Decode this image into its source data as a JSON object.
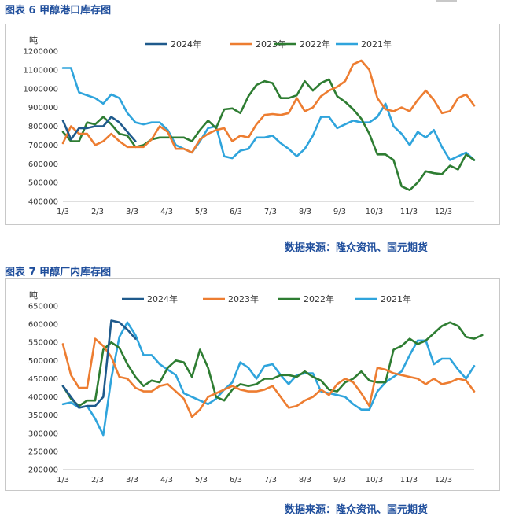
{
  "figures": [
    {
      "title": "图表 6 甲醇港口库存图",
      "source": "数据来源：隆众资讯、国元期货"
    },
    {
      "title": "图表 7 甲醇厂内库存图",
      "source": "数据来源：隆众资讯、国元期货"
    }
  ],
  "colors": {
    "2024": "#1f5a8c",
    "2023": "#ed7d31",
    "2022": "#2e7d32",
    "2021": "#2fa4dc"
  },
  "chart_data": [
    {
      "type": "line",
      "unit": "吨",
      "x_labels": [
        "1/3",
        "2/3",
        "3/3",
        "4/3",
        "5/3",
        "6/3",
        "7/3",
        "8/3",
        "9/3",
        "10/3",
        "11/3",
        "12/3"
      ],
      "ylim": [
        400000,
        1200000
      ],
      "y_ticks": [
        400000,
        500000,
        600000,
        700000,
        800000,
        900000,
        1000000,
        1100000,
        1200000
      ],
      "y_tick_labels": [
        "400000",
        "500000",
        "600000",
        "700000",
        "800000",
        "900000",
        "1000000",
        "1100000",
        "1200000"
      ],
      "series": [
        {
          "name": "2024年",
          "key": "2024",
          "values": [
            830000,
            730000,
            790000,
            790000,
            800000,
            800000,
            850000,
            820000,
            770000,
            720000
          ]
        },
        {
          "name": "2023年",
          "key": "2023",
          "values": [
            710000,
            800000,
            760000,
            760000,
            700000,
            720000,
            760000,
            720000,
            690000,
            690000,
            690000,
            730000,
            800000,
            770000,
            680000,
            680000,
            660000,
            730000,
            760000,
            780000,
            790000,
            720000,
            750000,
            740000,
            810000,
            860000,
            865000,
            860000,
            870000,
            950000,
            880000,
            900000,
            960000,
            990000,
            1010000,
            1040000,
            1130000,
            1150000,
            1100000,
            950000,
            890000,
            880000,
            900000,
            880000,
            940000,
            990000,
            940000,
            870000,
            880000,
            950000,
            970000,
            910000
          ]
        },
        {
          "name": "2022年",
          "key": "2022",
          "values": [
            770000,
            720000,
            720000,
            820000,
            810000,
            850000,
            810000,
            760000,
            750000,
            690000,
            700000,
            730000,
            740000,
            740000,
            740000,
            740000,
            720000,
            780000,
            830000,
            790000,
            890000,
            895000,
            870000,
            960000,
            1020000,
            1040000,
            1030000,
            950000,
            950000,
            965000,
            1040000,
            990000,
            1030000,
            1050000,
            960000,
            930000,
            890000,
            840000,
            760000,
            650000,
            650000,
            620000,
            480000,
            460000,
            500000,
            560000,
            550000,
            545000,
            590000,
            570000,
            650000,
            620000
          ]
        },
        {
          "name": "2021年",
          "key": "2021",
          "values": [
            1110000,
            1110000,
            980000,
            965000,
            950000,
            920000,
            970000,
            950000,
            870000,
            820000,
            810000,
            820000,
            820000,
            780000,
            700000,
            680000,
            660000,
            720000,
            790000,
            800000,
            640000,
            630000,
            670000,
            680000,
            740000,
            740000,
            750000,
            710000,
            680000,
            640000,
            680000,
            750000,
            850000,
            850000,
            790000,
            810000,
            830000,
            820000,
            820000,
            850000,
            920000,
            800000,
            760000,
            700000,
            770000,
            740000,
            780000,
            690000,
            620000,
            640000,
            660000,
            620000
          ]
        }
      ]
    },
    {
      "type": "line",
      "unit": "吨",
      "x_labels": [
        "1/3",
        "2/3",
        "3/3",
        "4/3",
        "5/3",
        "6/3",
        "7/3",
        "8/3",
        "9/3",
        "10/3",
        "11/3",
        "12/3"
      ],
      "ylim": [
        200000,
        650000
      ],
      "y_ticks": [
        200000,
        250000,
        300000,
        350000,
        400000,
        450000,
        500000,
        550000,
        600000,
        650000
      ],
      "y_tick_labels": [
        "200000",
        "250000",
        "300000",
        "350000",
        "400000",
        "450000",
        "500000",
        "550000",
        "600000",
        "650000"
      ],
      "series": [
        {
          "name": "2024年",
          "key": "2024",
          "values": [
            430000,
            400000,
            370000,
            375000,
            375000,
            400000,
            610000,
            605000,
            585000,
            560000
          ]
        },
        {
          "name": "2023年",
          "key": "2023",
          "values": [
            545000,
            460000,
            425000,
            425000,
            560000,
            540000,
            510000,
            455000,
            450000,
            425000,
            415000,
            415000,
            430000,
            435000,
            415000,
            395000,
            345000,
            365000,
            400000,
            410000,
            420000,
            430000,
            420000,
            415000,
            415000,
            420000,
            430000,
            400000,
            370000,
            375000,
            390000,
            400000,
            420000,
            405000,
            435000,
            450000,
            440000,
            410000,
            375000,
            480000,
            475000,
            465000,
            460000,
            455000,
            450000,
            435000,
            450000,
            435000,
            440000,
            450000,
            445000,
            415000
          ]
        },
        {
          "name": "2022年",
          "key": "2022",
          "values": [
            430000,
            395000,
            375000,
            390000,
            390000,
            530000,
            550000,
            535000,
            490000,
            455000,
            430000,
            445000,
            440000,
            480000,
            500000,
            495000,
            455000,
            530000,
            480000,
            400000,
            390000,
            420000,
            435000,
            430000,
            435000,
            450000,
            450000,
            460000,
            460000,
            455000,
            470000,
            455000,
            445000,
            420000,
            415000,
            440000,
            450000,
            470000,
            445000,
            440000,
            440000,
            530000,
            540000,
            560000,
            545000,
            555000,
            575000,
            595000,
            605000,
            595000,
            565000,
            560000,
            570000
          ]
        },
        {
          "name": "2021年",
          "key": "2021",
          "values": [
            380000,
            385000,
            370000,
            375000,
            340000,
            295000,
            450000,
            565000,
            605000,
            570000,
            515000,
            515000,
            490000,
            475000,
            460000,
            410000,
            400000,
            390000,
            380000,
            395000,
            420000,
            440000,
            495000,
            480000,
            450000,
            485000,
            490000,
            460000,
            435000,
            460000,
            465000,
            465000,
            415000,
            410000,
            405000,
            400000,
            380000,
            365000,
            365000,
            415000,
            440000,
            455000,
            470000,
            515000,
            555000,
            555000,
            490000,
            505000,
            505000,
            475000,
            450000,
            485000
          ]
        }
      ]
    }
  ]
}
